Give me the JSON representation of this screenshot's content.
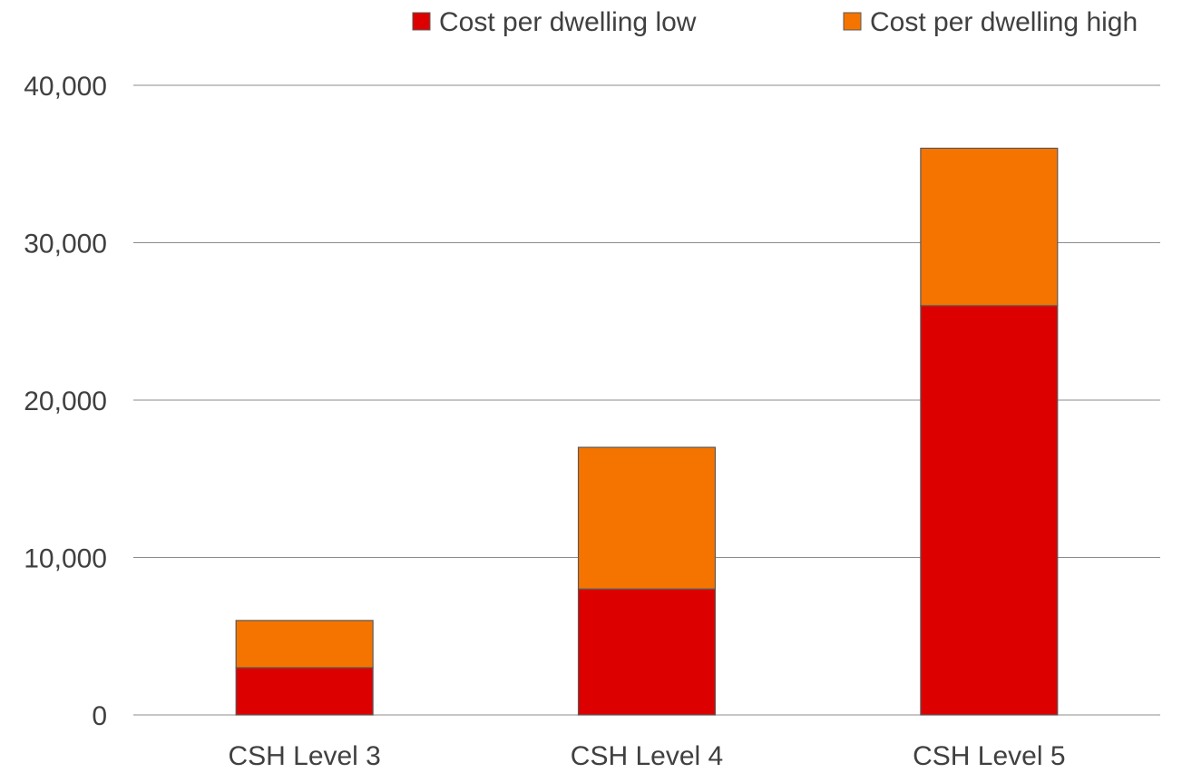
{
  "chart_data": {
    "type": "bar",
    "stacked": true,
    "categories": [
      "CSH Level 3",
      "CSH Level 4",
      "CSH Level 5"
    ],
    "series": [
      {
        "name": "Cost per dwelling low",
        "color": "#dc0000",
        "values": [
          3000,
          8000,
          26000
        ]
      },
      {
        "name": "Cost per dwelling high",
        "color": "#f57400",
        "values": [
          3000,
          9000,
          10000
        ]
      }
    ],
    "ylim": [
      0,
      40000
    ],
    "yticks": [
      0,
      10000,
      20000,
      30000,
      40000
    ],
    "ytick_labels": [
      "0",
      "10,000",
      "20,000",
      "30,000",
      "40,000"
    ],
    "grid": true,
    "legend_position": "top-right",
    "title": "",
    "xlabel": "",
    "ylabel": ""
  }
}
